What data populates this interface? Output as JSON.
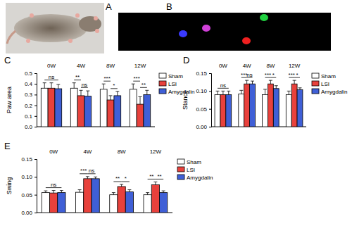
{
  "images": [
    {
      "label": "A"
    },
    {
      "label": "B"
    }
  ],
  "chart_data": [
    {
      "type": "bar",
      "title": "C",
      "y_label": "Paw area",
      "categories": [
        "0W",
        "4W",
        "8W",
        "12W"
      ],
      "series": [
        {
          "name": "Sham",
          "color": "#ffffff",
          "values": [
            0.36,
            0.36,
            0.35,
            0.35
          ],
          "errors": [
            0.05,
            0.05,
            0.05,
            0.05
          ]
        },
        {
          "name": "LSI",
          "color": "#e8413c",
          "values": [
            0.36,
            0.29,
            0.25,
            0.21
          ],
          "errors": [
            0.05,
            0.05,
            0.04,
            0.07
          ]
        },
        {
          "name": "Amygdalin",
          "color": "#3f5fd6",
          "values": [
            0.355,
            0.285,
            0.29,
            0.3
          ],
          "errors": [
            0.04,
            0.05,
            0.04,
            0.04
          ]
        }
      ],
      "ylim": [
        0,
        0.5
      ],
      "yticks": [
        {
          "value": 0,
          "label": "0.0"
        },
        0.1,
        0.2,
        0.3,
        0.4,
        0.5
      ],
      "legend": "right",
      "annotations": [
        {
          "category": "0W",
          "between": [
            "Sham",
            "Amygdalin"
          ],
          "text": "ns"
        },
        {
          "category": "4W",
          "between": [
            "Sham",
            "LSI"
          ],
          "text": "**"
        },
        {
          "category": "4W",
          "between": [
            "LSI",
            "Amygdalin"
          ],
          "text": "ns"
        },
        {
          "category": "8W",
          "between": [
            "Sham",
            "LSI"
          ],
          "text": "***"
        },
        {
          "category": "8W",
          "between": [
            "LSI",
            "Amygdalin"
          ],
          "text": "*"
        },
        {
          "category": "12W",
          "between": [
            "Sham",
            "LSI"
          ],
          "text": "***"
        },
        {
          "category": "12W",
          "between": [
            "LSI",
            "Amygdalin"
          ],
          "text": "**"
        }
      ]
    },
    {
      "type": "bar",
      "title": "D",
      "y_label": "Stance",
      "categories": [
        "0W",
        "4W",
        "8W",
        "12W"
      ],
      "series": [
        {
          "name": "Sham",
          "color": "#ffffff",
          "values": [
            0.09,
            0.092,
            0.09,
            0.09
          ],
          "errors": [
            0.01,
            0.01,
            0.015,
            0.01
          ]
        },
        {
          "name": "LSI",
          "color": "#e8413c",
          "values": [
            0.09,
            0.12,
            0.12,
            0.12
          ],
          "errors": [
            0.01,
            0.01,
            0.01,
            0.01
          ]
        },
        {
          "name": "Amygdalin",
          "color": "#3f5fd6",
          "values": [
            0.09,
            0.12,
            0.107,
            0.104
          ],
          "errors": [
            0.01,
            0.008,
            0.008,
            0.005
          ]
        }
      ],
      "ylim": [
        0,
        0.15
      ],
      "yticks": [
        {
          "value": 0,
          "label": "0.00"
        },
        {
          "value": 0.05,
          "label": "0.05"
        },
        {
          "value": 0.1,
          "label": "0.10"
        },
        {
          "value": 0.15,
          "label": "0.15"
        }
      ],
      "legend": "right",
      "annotations": [
        {
          "category": "0W",
          "between": [
            "Sham",
            "Amygdalin"
          ],
          "text": "ns"
        },
        {
          "category": "4W",
          "between": [
            "Sham",
            "LSI"
          ],
          "text": "***"
        },
        {
          "category": "4W",
          "between": [
            "LSI",
            "Amygdalin"
          ],
          "text": "ns"
        },
        {
          "category": "8W",
          "between": [
            "Sham",
            "LSI"
          ],
          "text": "***"
        },
        {
          "category": "8W",
          "between": [
            "LSI",
            "Amygdalin"
          ],
          "text": "*"
        },
        {
          "category": "12W",
          "between": [
            "Sham",
            "LSI"
          ],
          "text": "***"
        },
        {
          "category": "12W",
          "between": [
            "LSI",
            "Amygdalin"
          ],
          "text": "*"
        }
      ]
    },
    {
      "type": "bar",
      "title": "E",
      "y_label": "Swing",
      "categories": [
        "0W",
        "4W",
        "8W",
        "12W"
      ],
      "series": [
        {
          "name": "Sham",
          "color": "#ffffff",
          "values": [
            0.056,
            0.057,
            0.05,
            0.05
          ],
          "errors": [
            0.005,
            0.007,
            0.006,
            0.006
          ]
        },
        {
          "name": "LSI",
          "color": "#e8413c",
          "values": [
            0.055,
            0.095,
            0.073,
            0.078
          ],
          "errors": [
            0.007,
            0.006,
            0.006,
            0.008
          ]
        },
        {
          "name": "Amygdalin",
          "color": "#3f5fd6",
          "values": [
            0.056,
            0.095,
            0.058,
            0.056
          ],
          "errors": [
            0.006,
            0.005,
            0.006,
            0.005
          ]
        }
      ],
      "ylim": [
        0,
        0.15
      ],
      "yticks": [
        {
          "value": 0,
          "label": "0.00"
        },
        {
          "value": 0.05,
          "label": "0.05"
        },
        {
          "value": 0.1,
          "label": "0.10"
        },
        {
          "value": 0.15,
          "label": "0.15"
        }
      ],
      "legend": "right",
      "annotations": [
        {
          "category": "0W",
          "between": [
            "Sham",
            "Amygdalin"
          ],
          "text": "ns"
        },
        {
          "category": "4W",
          "between": [
            "Sham",
            "LSI"
          ],
          "text": "***"
        },
        {
          "category": "4W",
          "between": [
            "LSI",
            "Amygdalin"
          ],
          "text": "ns"
        },
        {
          "category": "8W",
          "between": [
            "Sham",
            "LSI"
          ],
          "text": "**"
        },
        {
          "category": "8W",
          "between": [
            "LSI",
            "Amygdalin"
          ],
          "text": "*"
        },
        {
          "category": "12W",
          "between": [
            "Sham",
            "LSI"
          ],
          "text": "**"
        },
        {
          "category": "12W",
          "between": [
            "LSI",
            "Amygdalin"
          ],
          "text": "**"
        }
      ]
    }
  ]
}
